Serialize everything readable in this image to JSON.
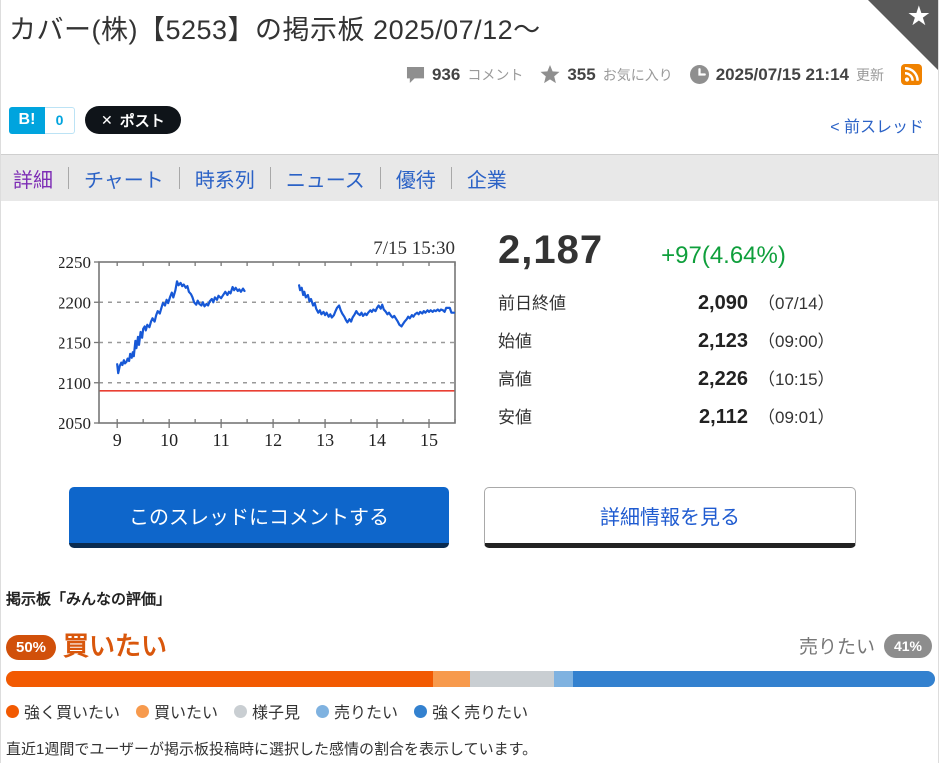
{
  "header": {
    "title": "カバー(株)【5253】の掲示板 2025/07/12～",
    "stats": {
      "comments_count": "936",
      "comments_label": "コメント",
      "favorites_count": "355",
      "favorites_label": "お気に入り",
      "updated_time": "2025/07/15 21:14",
      "updated_label": "更新"
    },
    "icons": [
      "favorite-ribbon-star-icon",
      "comment-icon",
      "star-icon",
      "clock-icon",
      "rss-icon"
    ],
    "hatena_label": "B!",
    "hatena_count": "0",
    "x_mark": "✕",
    "post_label": "ポスト",
    "prev_thread_label": "< 前スレッド"
  },
  "nav": {
    "tabs": [
      {
        "name": "tab-detail",
        "label": "詳細",
        "active": true
      },
      {
        "name": "tab-chart",
        "label": "チャート",
        "active": false
      },
      {
        "name": "tab-timeseries",
        "label": "時系列",
        "active": false
      },
      {
        "name": "tab-news",
        "label": "ニュース",
        "active": false
      },
      {
        "name": "tab-benefit",
        "label": "優待",
        "active": false
      },
      {
        "name": "tab-company",
        "label": "企業",
        "active": false
      }
    ]
  },
  "quote": {
    "price": "2,187",
    "change": "+97(4.64%)",
    "rows": [
      {
        "label": "前日終値",
        "value": "2,090",
        "time": "（07/14）"
      },
      {
        "label": "始値",
        "value": "2,123",
        "time": "（09:00）"
      },
      {
        "label": "高値",
        "value": "2,226",
        "time": "（10:15）"
      },
      {
        "label": "安値",
        "value": "2,112",
        "time": "（09:01）"
      }
    ]
  },
  "chart_data": {
    "type": "line",
    "title": "7/15 15:30",
    "ylim": [
      2050,
      2250
    ],
    "xlim": [
      8.65,
      15.5
    ],
    "y_ticks": [
      2250,
      2200,
      2150,
      2100,
      2050
    ],
    "x_ticks": [
      9,
      10,
      11,
      12,
      13,
      14,
      15
    ],
    "grid": true,
    "prev_close_line": 2090,
    "line_color": "#1758d6",
    "prev_close_color": "#e93f33",
    "series": [
      {
        "name": "morning",
        "points": [
          [
            9.0,
            2123
          ],
          [
            9.02,
            2112
          ],
          [
            9.05,
            2121
          ],
          [
            9.08,
            2125
          ],
          [
            9.1,
            2122
          ],
          [
            9.13,
            2128
          ],
          [
            9.15,
            2124
          ],
          [
            9.18,
            2126
          ],
          [
            9.2,
            2130
          ],
          [
            9.23,
            2127
          ],
          [
            9.25,
            2136
          ],
          [
            9.28,
            2131
          ],
          [
            9.3,
            2138
          ],
          [
            9.32,
            2133
          ],
          [
            9.35,
            2152
          ],
          [
            9.37,
            2143
          ],
          [
            9.4,
            2157
          ],
          [
            9.42,
            2147
          ],
          [
            9.45,
            2163
          ],
          [
            9.48,
            2156
          ],
          [
            9.5,
            2167
          ],
          [
            9.53,
            2170
          ],
          [
            9.55,
            2165
          ],
          [
            9.58,
            2172
          ],
          [
            9.62,
            2169
          ],
          [
            9.65,
            2176
          ],
          [
            9.68,
            2180
          ],
          [
            9.72,
            2176
          ],
          [
            9.75,
            2184
          ],
          [
            9.78,
            2189
          ],
          [
            9.82,
            2186
          ],
          [
            9.85,
            2193
          ],
          [
            9.88,
            2199
          ],
          [
            9.92,
            2196
          ],
          [
            9.95,
            2203
          ],
          [
            9.98,
            2199
          ],
          [
            10.02,
            2207
          ],
          [
            10.05,
            2212
          ],
          [
            10.08,
            2206
          ],
          [
            10.12,
            2215
          ],
          [
            10.15,
            2226
          ],
          [
            10.18,
            2221
          ],
          [
            10.22,
            2224
          ],
          [
            10.25,
            2220
          ],
          [
            10.28,
            2222
          ],
          [
            10.32,
            2218
          ],
          [
            10.35,
            2220
          ],
          [
            10.38,
            2213
          ],
          [
            10.42,
            2210
          ],
          [
            10.45,
            2206
          ],
          [
            10.48,
            2200
          ],
          [
            10.52,
            2197
          ],
          [
            10.55,
            2202
          ],
          [
            10.58,
            2198
          ],
          [
            10.62,
            2196
          ],
          [
            10.65,
            2200
          ],
          [
            10.68,
            2195
          ],
          [
            10.72,
            2198
          ],
          [
            10.75,
            2196
          ],
          [
            10.78,
            2201
          ],
          [
            10.82,
            2204
          ],
          [
            10.85,
            2200
          ],
          [
            10.88,
            2206
          ],
          [
            10.92,
            2203
          ],
          [
            10.95,
            2208
          ],
          [
            11.0,
            2205
          ],
          [
            11.05,
            2210
          ],
          [
            11.08,
            2213
          ],
          [
            11.12,
            2209
          ],
          [
            11.15,
            2213
          ],
          [
            11.18,
            2211
          ],
          [
            11.22,
            2219
          ],
          [
            11.25,
            2215
          ],
          [
            11.28,
            2218
          ],
          [
            11.32,
            2214
          ],
          [
            11.35,
            2216
          ],
          [
            11.38,
            2213
          ],
          [
            11.42,
            2217
          ],
          [
            11.45,
            2214
          ]
        ]
      },
      {
        "name": "afternoon",
        "points": [
          [
            12.5,
            2221
          ],
          [
            12.52,
            2215
          ],
          [
            12.55,
            2218
          ],
          [
            12.58,
            2209
          ],
          [
            12.6,
            2213
          ],
          [
            12.63,
            2206
          ],
          [
            12.67,
            2209
          ],
          [
            12.7,
            2201
          ],
          [
            12.73,
            2204
          ],
          [
            12.77,
            2196
          ],
          [
            12.8,
            2199
          ],
          [
            12.83,
            2192
          ],
          [
            12.87,
            2187
          ],
          [
            12.9,
            2190
          ],
          [
            12.93,
            2185
          ],
          [
            12.97,
            2188
          ],
          [
            13.0,
            2184
          ],
          [
            13.03,
            2187
          ],
          [
            13.07,
            2182
          ],
          [
            13.1,
            2185
          ],
          [
            13.13,
            2181
          ],
          [
            13.17,
            2184
          ],
          [
            13.2,
            2189
          ],
          [
            13.23,
            2193
          ],
          [
            13.27,
            2196
          ],
          [
            13.3,
            2190
          ],
          [
            13.33,
            2186
          ],
          [
            13.37,
            2182
          ],
          [
            13.4,
            2178
          ],
          [
            13.43,
            2175
          ],
          [
            13.47,
            2179
          ],
          [
            13.5,
            2176
          ],
          [
            13.53,
            2181
          ],
          [
            13.57,
            2185
          ],
          [
            13.6,
            2189
          ],
          [
            13.63,
            2186
          ],
          [
            13.67,
            2184
          ],
          [
            13.7,
            2187
          ],
          [
            13.73,
            2183
          ],
          [
            13.77,
            2186
          ],
          [
            13.8,
            2184
          ],
          [
            13.83,
            2187
          ],
          [
            13.87,
            2190
          ],
          [
            13.9,
            2188
          ],
          [
            13.93,
            2191
          ],
          [
            13.97,
            2189
          ],
          [
            14.0,
            2193
          ],
          [
            14.03,
            2196
          ],
          [
            14.07,
            2192
          ],
          [
            14.1,
            2197
          ],
          [
            14.13,
            2191
          ],
          [
            14.17,
            2188
          ],
          [
            14.2,
            2185
          ],
          [
            14.23,
            2187
          ],
          [
            14.27,
            2183
          ],
          [
            14.3,
            2181
          ],
          [
            14.33,
            2183
          ],
          [
            14.37,
            2179
          ],
          [
            14.4,
            2176
          ],
          [
            14.43,
            2172
          ],
          [
            14.47,
            2170
          ],
          [
            14.5,
            2173
          ],
          [
            14.53,
            2176
          ],
          [
            14.57,
            2179
          ],
          [
            14.6,
            2182
          ],
          [
            14.63,
            2180
          ],
          [
            14.67,
            2184
          ],
          [
            14.7,
            2182
          ],
          [
            14.73,
            2185
          ],
          [
            14.77,
            2187
          ],
          [
            14.8,
            2185
          ],
          [
            14.83,
            2188
          ],
          [
            14.87,
            2186
          ],
          [
            14.9,
            2189
          ],
          [
            14.93,
            2187
          ],
          [
            14.97,
            2190
          ],
          [
            15.0,
            2188
          ],
          [
            15.03,
            2190
          ],
          [
            15.07,
            2188
          ],
          [
            15.1,
            2190
          ],
          [
            15.13,
            2189
          ],
          [
            15.17,
            2191
          ],
          [
            15.2,
            2189
          ],
          [
            15.23,
            2191
          ],
          [
            15.27,
            2190
          ],
          [
            15.3,
            2188
          ],
          [
            15.33,
            2193
          ],
          [
            15.4,
            2193
          ],
          [
            15.43,
            2187
          ],
          [
            15.48,
            2187
          ]
        ]
      }
    ]
  },
  "actions": {
    "comment_button": "このスレッドにコメントする",
    "detail_button": "詳細情報を見る"
  },
  "sentiment": {
    "heading": "掲示板「みんなの評価」",
    "buy_pct": "50%",
    "buy_label": "買いたい",
    "sell_label": "売りたい",
    "sell_pct": "41%",
    "segments": [
      {
        "label": "強く買いたい",
        "value": 46,
        "color": "#f25a02"
      },
      {
        "label": "買いたい",
        "value": 4,
        "color": "#f79a4d"
      },
      {
        "label": "様子見",
        "value": 9,
        "color": "#c9ced2"
      },
      {
        "label": "売りたい",
        "value": 2,
        "color": "#7fb2e0"
      },
      {
        "label": "強く売りたい",
        "value": 39,
        "color": "#3381cf"
      }
    ],
    "note": "直近1週間でユーザーが掲示板投稿時に選択した感情の割合を表示しています。"
  },
  "colors": {
    "link_blue": "#2b62c6",
    "active_tab_purple": "#7d2db5",
    "change_green": "#0f9f3c",
    "buy_orange": "#d9570c",
    "primary_button_blue": "#0e66cb"
  }
}
